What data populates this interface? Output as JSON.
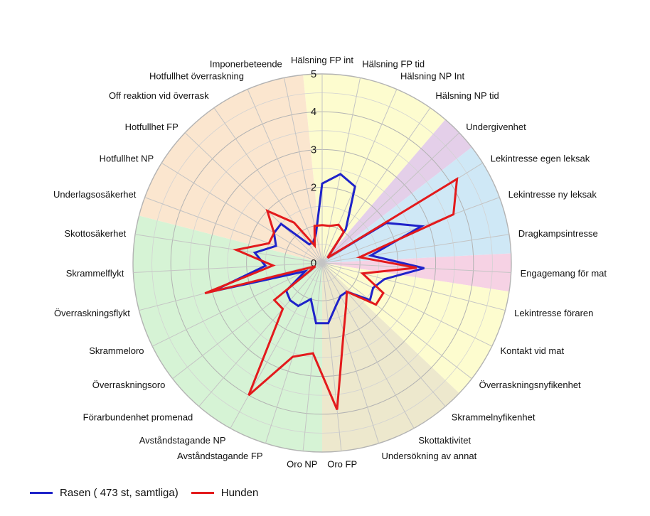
{
  "chart_data": {
    "type": "radar",
    "ylim": [
      0,
      5
    ],
    "ticks": [
      0,
      1,
      2,
      3,
      4,
      5
    ],
    "tick_labels": [
      "0",
      "",
      "2",
      "3",
      "4",
      "5"
    ],
    "categories": [
      "Hälsning FP int",
      "Hälsning FP tid",
      "Hälsning NP Int",
      "Hälsning NP tid",
      "Undergivenhet",
      "Lekintresse egen leksak",
      "Lekintresse ny leksak",
      "Dragkampsintresse",
      "Engagemang för mat",
      "Lekintresse föraren",
      "Kontakt vid mat",
      "Överraskningsnyfikenhet",
      "Skrammelnyfikenhet",
      "Skottaktivitet",
      "Undersökning av annat",
      "Oro FP",
      "Oro NP",
      "Avståndstagande FP",
      "Avståndstagande NP",
      "Förarbundenhet promenad",
      "Överraskningsoro",
      "Skrammeloro",
      "Överraskningsflykt",
      "Skrammelflykt",
      "Skottosäkerhet",
      "Underlagsosäkerhet",
      "Hotfullhet NP",
      "Hotfullhet FP",
      "Off reaktion vid överrask",
      "Hotfullhet överraskning",
      "Imponerbeteende"
    ],
    "sectors": [
      {
        "color": "#fdfccf",
        "from": "Hälsning FP int",
        "to": "Hälsning NP tid"
      },
      {
        "color": "#e4cfe9",
        "from": "Undergivenhet",
        "to": "Undergivenhet"
      },
      {
        "color": "#cfe8f6",
        "from": "Lekintresse egen leksak",
        "to": "Dragkampsintresse"
      },
      {
        "color": "#f6d2e4",
        "from": "Engagemang för mat",
        "to": "Engagemang för mat"
      },
      {
        "color": "#fdfccf",
        "from": "Lekintresse föraren",
        "to": "Överraskningsnyfikenhet"
      },
      {
        "color": "#ede8cd",
        "from": "Skrammelnyfikenhet",
        "to": "Oro FP"
      },
      {
        "color": "#d6f3d5",
        "from": "Oro NP",
        "to": "Skottosäkerhet"
      },
      {
        "color": "#fbe6cf",
        "from": "Underlagsosäkerhet",
        "to": "Imponerbeteende"
      }
    ],
    "series": [
      {
        "name": "Rasen ( 473 st, samtliga)",
        "color": "#1f23c9",
        "values": [
          2.1,
          2.4,
          2.2,
          1.1,
          0.2,
          2.0,
          2.8,
          1.3,
          2.7,
          1.7,
          1.5,
          1.6,
          1.0,
          1.0,
          1.2,
          1.6,
          1.6,
          1.0,
          1.3,
          1.3,
          1.2,
          0.5,
          3.0,
          1.5,
          1.8,
          1.3,
          1.5,
          1.5,
          0.6,
          0.6,
          0.8
        ]
      },
      {
        "name": "Hunden",
        "color": "#e31a1c",
        "values": [
          1.0,
          1.0,
          1.1,
          1.0,
          0.2,
          4.2,
          3.7,
          1.0,
          2.5,
          1.1,
          1.8,
          1.8,
          1.0,
          1.3,
          1.9,
          3.9,
          2.4,
          2.6,
          4.0,
          1.6,
          1.6,
          0.2,
          3.2,
          1.3,
          2.3,
          1.5,
          1.5,
          2.0,
          1.3,
          0.5,
          1.0
        ]
      }
    ]
  }
}
